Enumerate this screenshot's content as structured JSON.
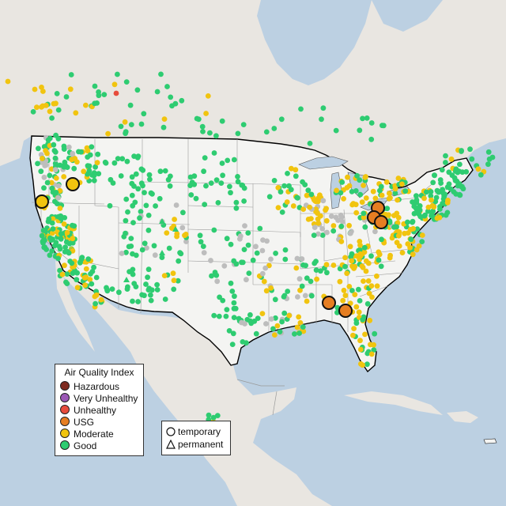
{
  "legend": {
    "title": "Air Quality Index",
    "items": [
      {
        "label": "Hazardous",
        "color": "#7e2a1f"
      },
      {
        "label": "Very Unhealthy",
        "color": "#9b59b6"
      },
      {
        "label": "Unhealthy",
        "color": "#e74c3c"
      },
      {
        "label": "USG",
        "color": "#e67e22"
      },
      {
        "label": "Moderate",
        "color": "#f1c40f"
      },
      {
        "label": "Good",
        "color": "#2ecc71"
      }
    ]
  },
  "monitor_types": {
    "items": [
      {
        "label": "temporary",
        "shape": "circle-icon"
      },
      {
        "label": "permanent",
        "shape": "triangle-icon"
      }
    ]
  },
  "colors": {
    "water": "#bcd0e2",
    "land": "#e9e6e1",
    "us_land": "#f4f4f2",
    "no_data": "#bdbdbd"
  }
}
